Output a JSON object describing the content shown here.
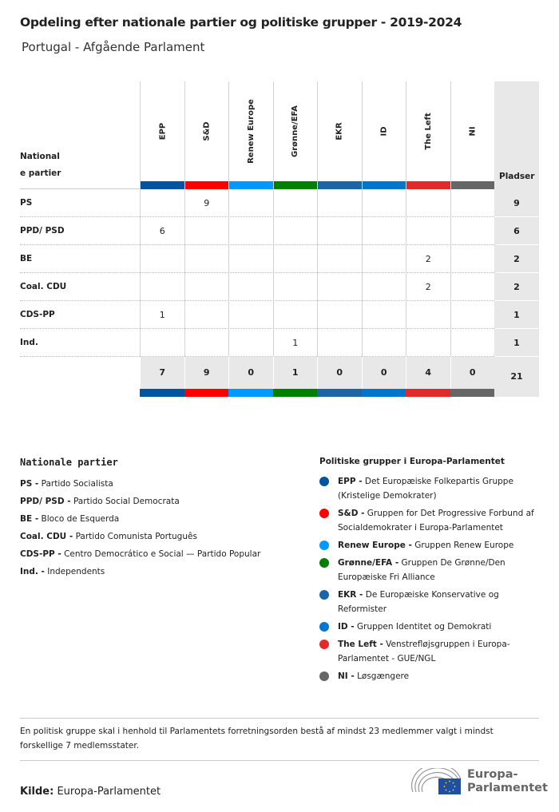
{
  "title": "Opdeling efter nationale partier og politiske grupper - 2019-2024",
  "subtitle": "Portugal - Afgående Parlament",
  "table": {
    "party_header_line1": "National",
    "party_header_line2": "e partier",
    "seats_header": "Pladser",
    "groups": [
      {
        "label": "EPP",
        "color": "#0054A0"
      },
      {
        "label": "S&D",
        "color": "#FF0000"
      },
      {
        "label": "Renew Europe",
        "color": "#0099FF"
      },
      {
        "label": "Grønne/EFA",
        "color": "#008000"
      },
      {
        "label": "EKR",
        "color": "#1C66A6"
      },
      {
        "label": "ID",
        "color": "#0077CC"
      },
      {
        "label": "The Left",
        "color": "#E32A2A"
      },
      {
        "label": "NI",
        "color": "#666666"
      }
    ],
    "rows": [
      {
        "party": "PS",
        "values": [
          "",
          "9",
          "",
          "",
          "",
          "",
          "",
          ""
        ],
        "total": "9"
      },
      {
        "party": "PPD/ PSD",
        "values": [
          "6",
          "",
          "",
          "",
          "",
          "",
          "",
          ""
        ],
        "total": "6"
      },
      {
        "party": "BE",
        "values": [
          "",
          "",
          "",
          "",
          "",
          "",
          "2",
          ""
        ],
        "total": "2"
      },
      {
        "party": "Coal. CDU",
        "values": [
          "",
          "",
          "",
          "",
          "",
          "",
          "2",
          ""
        ],
        "total": "2"
      },
      {
        "party": "CDS-PP",
        "values": [
          "1",
          "",
          "",
          "",
          "",
          "",
          "",
          ""
        ],
        "total": "1"
      },
      {
        "party": "Ind.",
        "values": [
          "",
          "",
          "",
          "1",
          "",
          "",
          "",
          ""
        ],
        "total": "1"
      }
    ],
    "totals": [
      "7",
      "9",
      "0",
      "1",
      "0",
      "0",
      "4",
      "0"
    ],
    "grand_total": "21"
  },
  "legend_parties": {
    "title": "Nationale partier",
    "items": [
      {
        "abbr": "PS -",
        "name": "Partido Socialista"
      },
      {
        "abbr": "PPD/ PSD -",
        "name": "Partido Social Democrata"
      },
      {
        "abbr": "BE -",
        "name": "Bloco de Esquerda"
      },
      {
        "abbr": "Coal. CDU -",
        "name": "Partido Comunista Português"
      },
      {
        "abbr": "CDS-PP -",
        "name": "Centro Democrático e Social — Partido Popular"
      },
      {
        "abbr": "Ind. -",
        "name": "Independents"
      }
    ]
  },
  "legend_groups": {
    "title": "Politiske grupper i Europa-Parlamentet",
    "items": [
      {
        "abbr": "EPP -",
        "name": "Det Europæiske Folkepartis Gruppe (Kristelige Demokrater)",
        "color": "#0054A0"
      },
      {
        "abbr": "S&D -",
        "name": "Gruppen for Det Progressive Forbund af Socialdemokrater i Europa-Parlamentet",
        "color": "#FF0000"
      },
      {
        "abbr": "Renew Europe -",
        "name": "Gruppen Renew Europe",
        "color": "#0099FF"
      },
      {
        "abbr": "Grønne/EFA -",
        "name": "Gruppen De Grønne/Den Europæiske Fri Alliance",
        "color": "#008000"
      },
      {
        "abbr": "EKR -",
        "name": "De Europæiske Konservative og Reformister",
        "color": "#1C66A6"
      },
      {
        "abbr": "ID -",
        "name": "Gruppen Identitet og Demokrati",
        "color": "#0077CC"
      },
      {
        "abbr": "The Left -",
        "name": "Venstrefløjsgruppen i Europa-Parlamentet - GUE/NGL",
        "color": "#E32A2A"
      },
      {
        "abbr": "NI -",
        "name": "Løsgængere",
        "color": "#666666"
      }
    ]
  },
  "note": "En politisk gruppe skal i henhold til Parlamentets forretningsorden bestå af mindst 23 medlemmer valgt i mindst forskellige 7 medlemsstater.",
  "source_label": "Kilde:",
  "source_value": "Europa-Parlamentet",
  "logo": {
    "line1": "Europa-",
    "line2": "Parlamentet"
  }
}
